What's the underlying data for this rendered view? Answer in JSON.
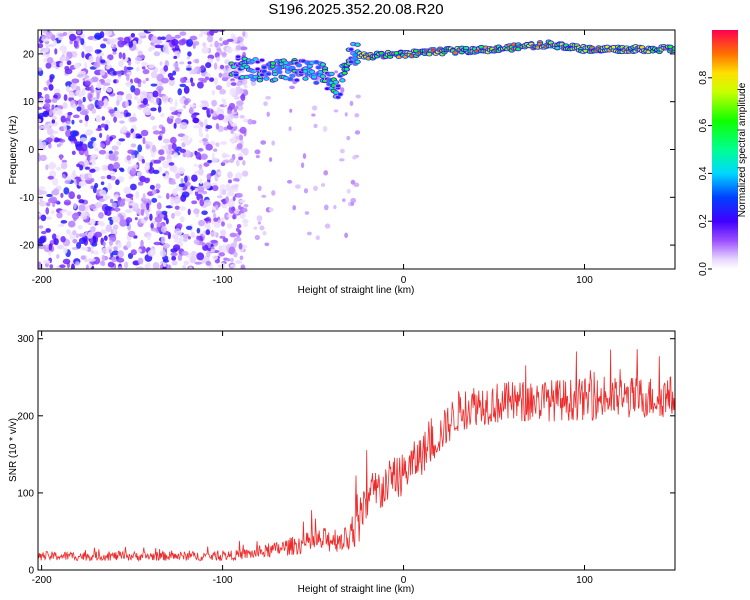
{
  "title": "S196.2025.352.20.08.R20",
  "chart_data": [
    {
      "type": "heatmap",
      "title": "S196.2025.352.20.08.R20",
      "xlabel": "Height of straight line (km)",
      "ylabel": "Frequency (Hz)",
      "xlim": [
        -202,
        150
      ],
      "ylim": [
        -25,
        25
      ],
      "xticks": [
        -200,
        -100,
        0,
        100
      ],
      "yticks": [
        20,
        10,
        0,
        -10,
        -20
      ],
      "colorbar": {
        "label": "Normalized spectral amplitude",
        "range": [
          0,
          1
        ],
        "ticks": [
          0.0,
          0.2,
          0.4,
          0.6,
          0.8
        ]
      },
      "features": {
        "noise_region_km": [
          -202,
          -95
        ],
        "signal_track": [
          {
            "x": -95,
            "f": 17.5
          },
          {
            "x": -80,
            "f": 16.5
          },
          {
            "x": -60,
            "f": 16.5
          },
          {
            "x": -45,
            "f": 16.0
          },
          {
            "x": -36,
            "f": 12.5
          },
          {
            "x": -30,
            "f": 20.0
          },
          {
            "x": -20,
            "f": 19.5
          },
          {
            "x": 0,
            "f": 20.0
          },
          {
            "x": 20,
            "f": 20.5
          },
          {
            "x": 50,
            "f": 21.0
          },
          {
            "x": 80,
            "f": 22.0
          },
          {
            "x": 100,
            "f": 21.0
          },
          {
            "x": 150,
            "f": 21.0
          }
        ]
      }
    },
    {
      "type": "line",
      "xlabel": "Height of straight line (km)",
      "ylabel": "SNR (10 * v/v)",
      "xlim": [
        -202,
        150
      ],
      "ylim": [
        0,
        310
      ],
      "xticks": [
        -200,
        -100,
        0,
        100
      ],
      "yticks": [
        0,
        100,
        200,
        300
      ],
      "color": "#ee2a2a",
      "envelope": [
        {
          "x": -200,
          "base": 18,
          "noise": 12
        },
        {
          "x": -100,
          "base": 18,
          "noise": 12
        },
        {
          "x": -80,
          "base": 22,
          "noise": 15
        },
        {
          "x": -60,
          "base": 32,
          "noise": 25
        },
        {
          "x": -40,
          "base": 40,
          "noise": 35
        },
        {
          "x": -30,
          "base": 40,
          "noise": 30
        },
        {
          "x": -25,
          "base": 60,
          "noise": 60
        },
        {
          "x": -20,
          "base": 90,
          "noise": 70
        },
        {
          "x": -10,
          "base": 110,
          "noise": 60
        },
        {
          "x": 0,
          "base": 125,
          "noise": 55
        },
        {
          "x": 10,
          "base": 150,
          "noise": 55
        },
        {
          "x": 20,
          "base": 175,
          "noise": 50
        },
        {
          "x": 30,
          "base": 205,
          "noise": 55
        },
        {
          "x": 40,
          "base": 215,
          "noise": 55
        },
        {
          "x": 80,
          "base": 220,
          "noise": 55
        },
        {
          "x": 150,
          "base": 225,
          "noise": 55
        }
      ]
    }
  ]
}
